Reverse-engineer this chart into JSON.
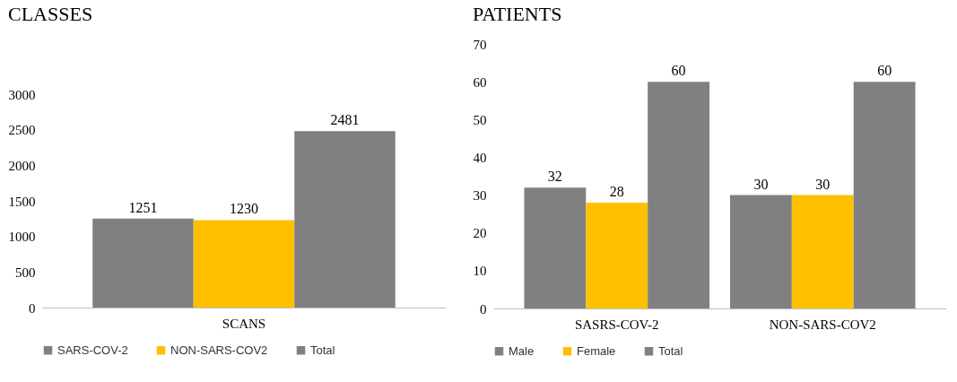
{
  "chart_data": [
    {
      "type": "bar",
      "title": "CLASSES",
      "categories": [
        "SCANS"
      ],
      "series": [
        {
          "name": "SARS-COV-2",
          "color": "#808080",
          "values": [
            1251
          ]
        },
        {
          "name": "NON-SARS-COV2",
          "color": "#ffc000",
          "values": [
            1230
          ]
        },
        {
          "name": "Total",
          "color": "#808080",
          "values": [
            2481
          ]
        }
      ],
      "ylim": [
        0,
        3000
      ],
      "yticks": [
        0,
        500,
        1000,
        1500,
        2000,
        2500,
        3000
      ],
      "data_labels": true,
      "legend": "bottom"
    },
    {
      "type": "bar",
      "title": "PATIENTS",
      "categories": [
        "SASRS-COV-2",
        "NON-SARS-COV2"
      ],
      "series": [
        {
          "name": "Male",
          "color": "#808080",
          "values": [
            32,
            30
          ]
        },
        {
          "name": "Female",
          "color": "#ffc000",
          "values": [
            28,
            30
          ]
        },
        {
          "name": "Total",
          "color": "#808080",
          "values": [
            60,
            60
          ]
        }
      ],
      "ylim": [
        0,
        70
      ],
      "yticks": [
        0,
        10,
        20,
        30,
        40,
        50,
        60,
        70
      ],
      "data_labels": true,
      "legend": "bottom"
    }
  ]
}
